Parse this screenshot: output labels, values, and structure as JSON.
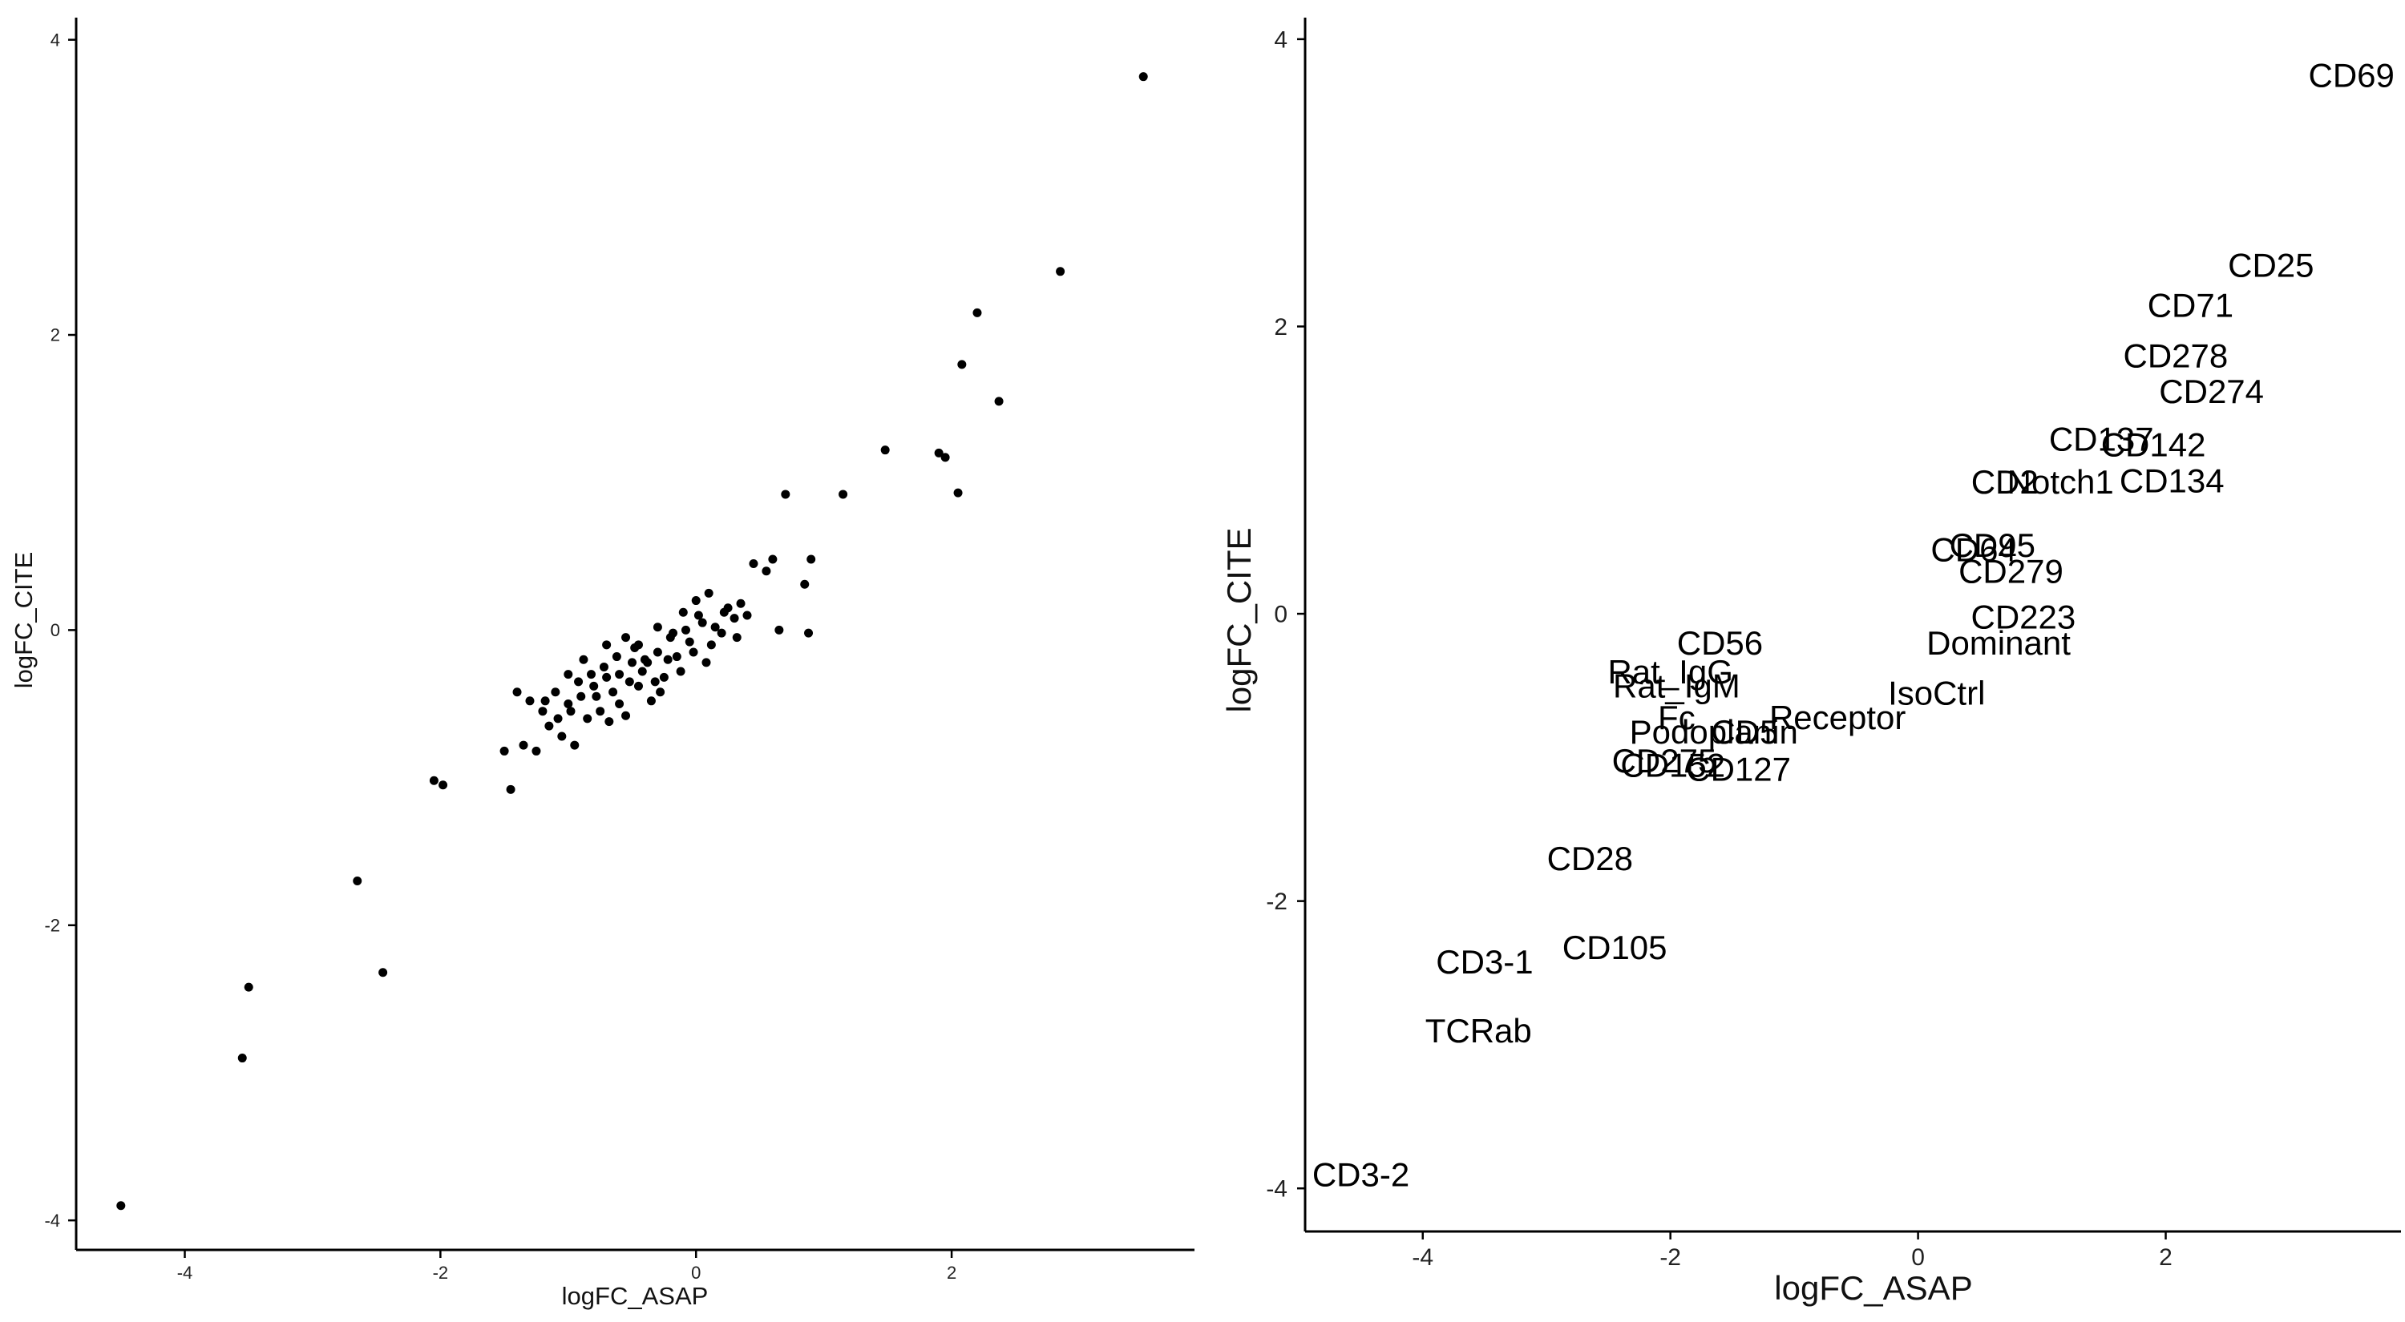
{
  "chart_data": [
    {
      "type": "scatter",
      "xlabel": "logFC_ASAP",
      "ylabel": "logFC_CITE",
      "xlim": [
        -4.85,
        3.9
      ],
      "ylim": [
        -4.2,
        4.15
      ],
      "x_ticks": [
        "-4",
        "-2",
        "0",
        "2"
      ],
      "y_ticks": [
        "-4",
        "-2",
        "0",
        "2",
        "4"
      ],
      "grid": false,
      "points": [
        {
          "x": 3.5,
          "y": 3.75
        },
        {
          "x": 2.85,
          "y": 2.43
        },
        {
          "x": 2.2,
          "y": 2.15
        },
        {
          "x": 2.08,
          "y": 1.8
        },
        {
          "x": 2.37,
          "y": 1.55
        },
        {
          "x": 1.48,
          "y": 1.22
        },
        {
          "x": 1.9,
          "y": 1.2
        },
        {
          "x": 1.95,
          "y": 1.17
        },
        {
          "x": 0.7,
          "y": 0.92
        },
        {
          "x": 1.15,
          "y": 0.92
        },
        {
          "x": 2.05,
          "y": 0.93
        },
        {
          "x": 0.9,
          "y": 0.48
        },
        {
          "x": 0.6,
          "y": 0.48
        },
        {
          "x": 0.45,
          "y": 0.45
        },
        {
          "x": 0.55,
          "y": 0.4
        },
        {
          "x": 0.85,
          "y": 0.31
        },
        {
          "x": 0.88,
          "y": -0.02
        },
        {
          "x": 0.65,
          "y": 0.0
        },
        {
          "x": 0.35,
          "y": 0.18
        },
        {
          "x": 0.25,
          "y": 0.15
        },
        {
          "x": 0.1,
          "y": 0.25
        },
        {
          "x": 0.0,
          "y": 0.2
        },
        {
          "x": -0.1,
          "y": 0.12
        },
        {
          "x": 0.05,
          "y": 0.05
        },
        {
          "x": 0.2,
          "y": -0.02
        },
        {
          "x": -0.05,
          "y": -0.08
        },
        {
          "x": -0.2,
          "y": -0.05
        },
        {
          "x": -0.3,
          "y": -0.15
        },
        {
          "x": -0.4,
          "y": -0.2
        },
        {
          "x": -0.5,
          "y": -0.22
        },
        {
          "x": -0.6,
          "y": -0.3
        },
        {
          "x": -0.7,
          "y": -0.32
        },
        {
          "x": -0.8,
          "y": -0.38
        },
        {
          "x": -0.9,
          "y": -0.45
        },
        {
          "x": -1.0,
          "y": -0.5
        },
        {
          "x": -0.55,
          "y": -0.05
        },
        {
          "x": -0.65,
          "y": -0.42
        },
        {
          "x": -0.35,
          "y": -0.48
        },
        {
          "x": -0.25,
          "y": -0.32
        },
        {
          "x": -0.15,
          "y": -0.18
        },
        {
          "x": -0.45,
          "y": -0.38
        },
        {
          "x": -0.75,
          "y": -0.55
        },
        {
          "x": -0.85,
          "y": -0.6
        },
        {
          "x": -1.05,
          "y": -0.72
        },
        {
          "x": -1.1,
          "y": -0.42
        },
        {
          "x": -1.2,
          "y": -0.55
        },
        {
          "x": -1.3,
          "y": -0.48
        },
        {
          "x": -1.35,
          "y": -0.78
        },
        {
          "x": -1.25,
          "y": -0.82
        },
        {
          "x": -1.15,
          "y": -0.65
        },
        {
          "x": -0.95,
          "y": -0.78
        },
        {
          "x": -1.4,
          "y": -0.42
        },
        {
          "x": -1.5,
          "y": -0.82
        },
        {
          "x": -1.45,
          "y": -1.08
        },
        {
          "x": -2.05,
          "y": -1.02
        },
        {
          "x": -1.98,
          "y": -1.05
        },
        {
          "x": -2.65,
          "y": -1.7
        },
        {
          "x": -2.45,
          "y": -2.32
        },
        {
          "x": -3.5,
          "y": -2.42
        },
        {
          "x": -3.55,
          "y": -2.9
        },
        {
          "x": -4.5,
          "y": -3.9
        },
        {
          "x": 0.3,
          "y": 0.08
        },
        {
          "x": 0.4,
          "y": 0.1
        },
        {
          "x": 0.15,
          "y": 0.02
        },
        {
          "x": 0.12,
          "y": -0.1
        },
        {
          "x": -0.02,
          "y": -0.15
        },
        {
          "x": -0.12,
          "y": -0.28
        },
        {
          "x": -0.22,
          "y": -0.2
        },
        {
          "x": -0.32,
          "y": -0.35
        },
        {
          "x": -0.42,
          "y": -0.28
        },
        {
          "x": -0.52,
          "y": -0.35
        },
        {
          "x": -0.62,
          "y": -0.18
        },
        {
          "x": -0.72,
          "y": -0.25
        },
        {
          "x": -0.82,
          "y": -0.3
        },
        {
          "x": -0.92,
          "y": -0.35
        },
        {
          "x": -0.7,
          "y": -0.1
        },
        {
          "x": -0.45,
          "y": -0.1
        },
        {
          "x": -0.3,
          "y": 0.02
        },
        {
          "x": -0.18,
          "y": -0.02
        },
        {
          "x": 0.02,
          "y": 0.1
        },
        {
          "x": -0.08,
          "y": 0.0
        },
        {
          "x": -0.6,
          "y": -0.5
        },
        {
          "x": -0.55,
          "y": -0.58
        },
        {
          "x": -0.38,
          "y": -0.22
        },
        {
          "x": -0.28,
          "y": -0.42
        },
        {
          "x": -0.48,
          "y": -0.12
        },
        {
          "x": -0.88,
          "y": -0.2
        },
        {
          "x": -1.0,
          "y": -0.3
        },
        {
          "x": 0.22,
          "y": 0.12
        },
        {
          "x": 0.32,
          "y": -0.05
        },
        {
          "x": 0.08,
          "y": -0.22
        },
        {
          "x": -0.68,
          "y": -0.62
        },
        {
          "x": -0.78,
          "y": -0.45
        },
        {
          "x": -0.98,
          "y": -0.55
        },
        {
          "x": -1.08,
          "y": -0.6
        },
        {
          "x": -1.18,
          "y": -0.48
        }
      ]
    },
    {
      "type": "scatter",
      "xlabel": "logFC_ASAP",
      "ylabel": "logFC_CITE",
      "xlim": [
        -4.95,
        3.9
      ],
      "ylim": [
        -4.3,
        4.15
      ],
      "x_ticks": [
        "-4",
        "-2",
        "0",
        "2"
      ],
      "y_ticks": [
        "-4",
        "-2",
        "0",
        "2",
        "4"
      ],
      "grid": false,
      "labels": [
        {
          "text": "CD69",
          "x": 3.5,
          "y": 3.75
        },
        {
          "text": "CD25",
          "x": 2.85,
          "y": 2.43
        },
        {
          "text": "CD71",
          "x": 2.2,
          "y": 2.15
        },
        {
          "text": "CD278",
          "x": 2.08,
          "y": 1.8
        },
        {
          "text": "CD274",
          "x": 2.37,
          "y": 1.55
        },
        {
          "text": "CD137",
          "x": 1.48,
          "y": 1.22
        },
        {
          "text": "CD142",
          "x": 1.9,
          "y": 1.18
        },
        {
          "text": "CD134",
          "x": 2.05,
          "y": 0.93
        },
        {
          "text": "CD2",
          "x": 0.7,
          "y": 0.92
        },
        {
          "text": "Notch1",
          "x": 1.15,
          "y": 0.92
        },
        {
          "text": "CD95",
          "x": 0.6,
          "y": 0.48
        },
        {
          "text": "CD64",
          "x": 0.45,
          "y": 0.45
        },
        {
          "text": "CD279",
          "x": 0.75,
          "y": 0.3
        },
        {
          "text": "CD223",
          "x": 0.85,
          "y": -0.02
        },
        {
          "text": "Dominant",
          "x": 0.65,
          "y": -0.2
        },
        {
          "text": "CD56",
          "x": -1.6,
          "y": -0.2
        },
        {
          "text": "Rat_IgG",
          "x": -2.0,
          "y": -0.4
        },
        {
          "text": "Rat_IgM",
          "x": -1.95,
          "y": -0.5
        },
        {
          "text": "IsoCtrl",
          "x": 0.15,
          "y": -0.55
        },
        {
          "text": "Receptor",
          "x": -0.65,
          "y": -0.72
        },
        {
          "text": "Fc",
          "x": -1.95,
          "y": -0.72
        },
        {
          "text": "Podoplanin",
          "x": -1.65,
          "y": -0.82
        },
        {
          "text": "CD5",
          "x": -1.4,
          "y": -0.82
        },
        {
          "text": "CD275",
          "x": -2.05,
          "y": -1.02
        },
        {
          "text": "CD152",
          "x": -1.98,
          "y": -1.05
        },
        {
          "text": "CD127",
          "x": -1.45,
          "y": -1.08
        },
        {
          "text": "CD28",
          "x": -2.65,
          "y": -1.7
        },
        {
          "text": "CD105",
          "x": -2.45,
          "y": -2.32
        },
        {
          "text": "CD3-1",
          "x": -3.5,
          "y": -2.42
        },
        {
          "text": "TCRab",
          "x": -3.55,
          "y": -2.9
        },
        {
          "text": "CD3-2",
          "x": -4.5,
          "y": -3.9
        }
      ]
    }
  ]
}
